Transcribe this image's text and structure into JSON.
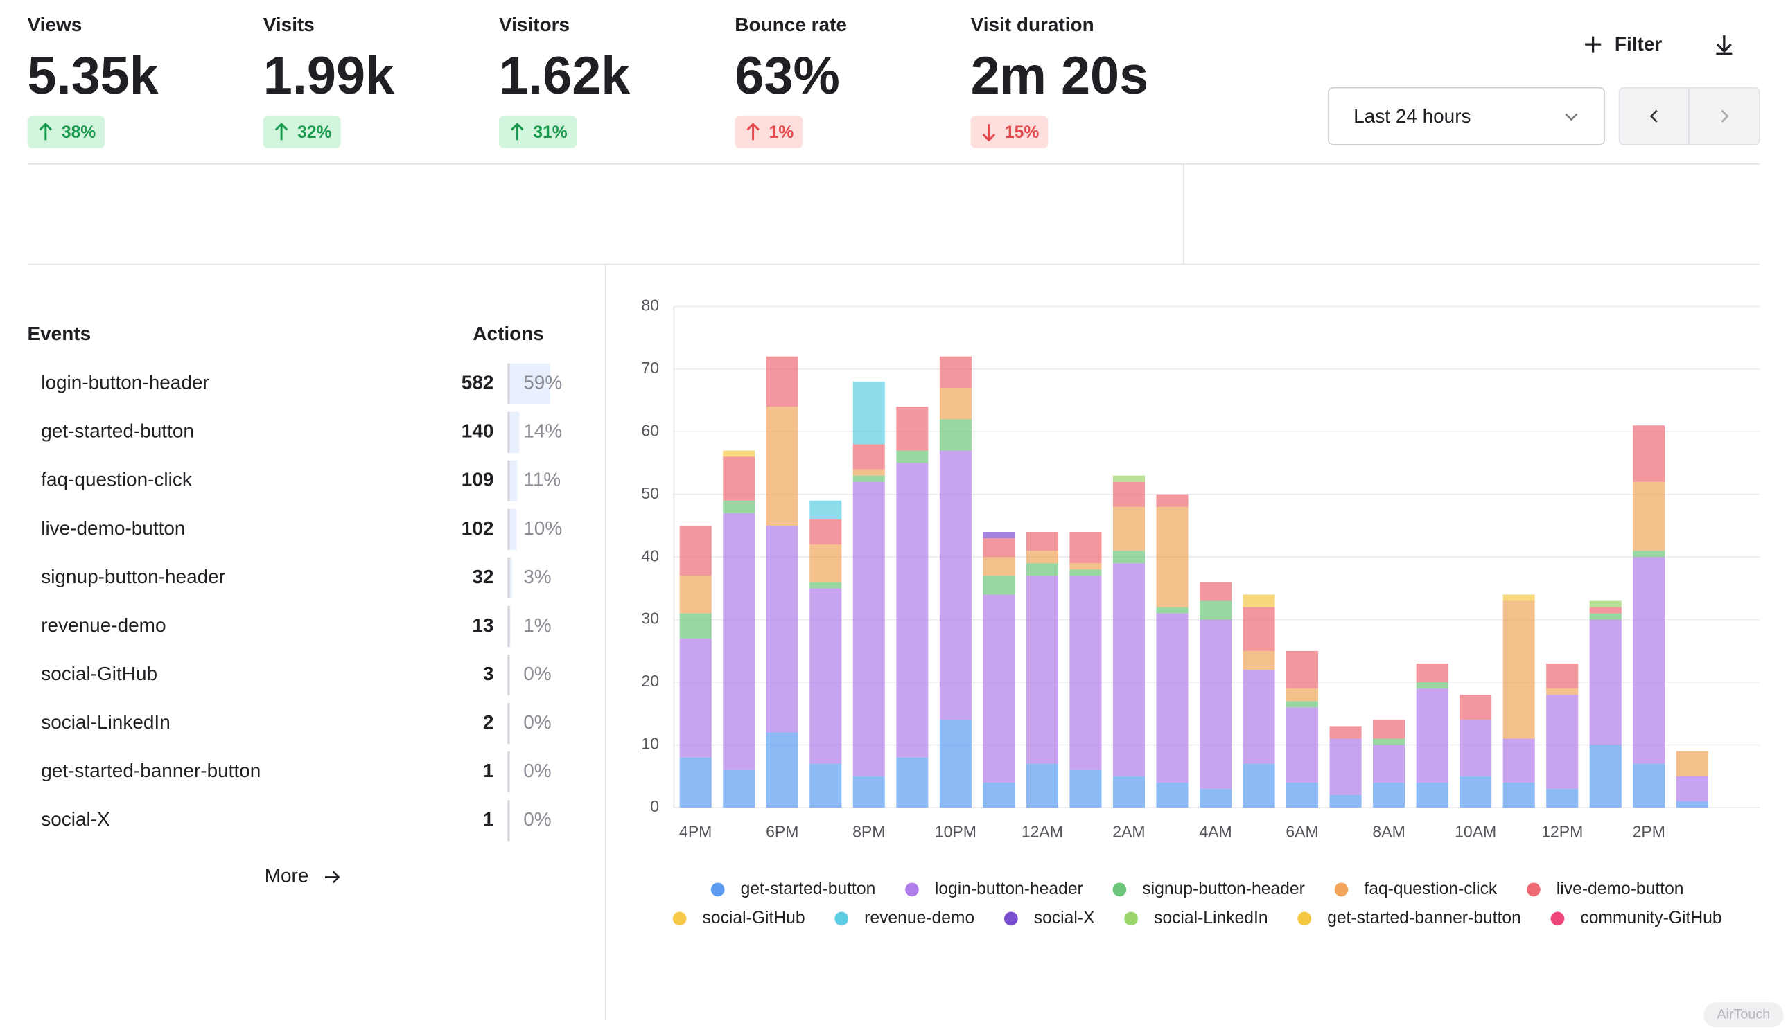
{
  "stats": [
    {
      "label": "Views",
      "value": "5.35k",
      "change": "38%",
      "direction": "up"
    },
    {
      "label": "Visits",
      "value": "1.99k",
      "change": "32%",
      "direction": "up"
    },
    {
      "label": "Visitors",
      "value": "1.62k",
      "change": "31%",
      "direction": "up"
    },
    {
      "label": "Bounce rate",
      "value": "63%",
      "change": "1%",
      "direction": "up-bad"
    },
    {
      "label": "Visit duration",
      "value": "2m 20s",
      "change": "15%",
      "direction": "down"
    }
  ],
  "controls": {
    "filter": "Filter",
    "period": "Last 24 hours"
  },
  "events": {
    "header": [
      "Events",
      "Actions"
    ],
    "rows": [
      {
        "name": "login-button-header",
        "count": 582,
        "share": {
          "value": 59,
          "label": "59%"
        }
      },
      {
        "name": "get-started-button",
        "count": 140,
        "share": {
          "value": 14,
          "label": "14%"
        }
      },
      {
        "name": "faq-question-click",
        "count": 109,
        "share": {
          "value": 11,
          "label": "11%"
        }
      },
      {
        "name": "live-demo-button",
        "count": 102,
        "share": {
          "value": 10,
          "label": "10%"
        }
      },
      {
        "name": "signup-button-header",
        "count": 32,
        "share": {
          "value": 3,
          "label": "3%"
        }
      },
      {
        "name": "revenue-demo",
        "count": 13,
        "share": {
          "value": 1,
          "label": "1%"
        }
      },
      {
        "name": "social-GitHub",
        "count": 3,
        "share": {
          "value": 0,
          "label": "0%"
        }
      },
      {
        "name": "social-LinkedIn",
        "count": 2,
        "share": {
          "value": 0,
          "label": "0%"
        }
      },
      {
        "name": "get-started-banner-button",
        "count": 1,
        "share": {
          "value": 0,
          "label": "0%"
        }
      },
      {
        "name": "social-X",
        "count": 1,
        "share": {
          "value": 0,
          "label": "0%"
        }
      }
    ],
    "more": "More"
  },
  "chart_data": {
    "type": "stacked-bar",
    "categories": [
      "4PM",
      null,
      "6PM",
      null,
      "8PM",
      null,
      "10PM",
      null,
      "12AM",
      null,
      "2AM",
      null,
      "4AM",
      null,
      "6AM",
      null,
      "8AM",
      null,
      "10AM",
      null,
      "12PM",
      null,
      "2PM",
      null
    ],
    "ylim": [
      0,
      80
    ],
    "yticks": [
      0,
      10,
      20,
      30,
      40,
      50,
      60,
      70,
      80
    ],
    "grid": true,
    "series": [
      {
        "name": "get-started-button",
        "color": "#5b9cf0",
        "values": [
          8,
          6,
          12,
          7,
          5,
          8,
          14,
          4,
          7,
          6,
          5,
          4,
          3,
          7,
          4,
          2,
          4,
          4,
          5,
          4,
          3,
          10,
          7,
          1
        ]
      },
      {
        "name": "login-button-header",
        "color": "#b07ee8",
        "values": [
          19,
          41,
          33,
          28,
          47,
          47,
          43,
          30,
          30,
          31,
          34,
          27,
          27,
          15,
          12,
          9,
          6,
          15,
          9,
          7,
          15,
          20,
          33,
          4
        ]
      },
      {
        "name": "signup-button-header",
        "color": "#6cc47a",
        "values": [
          4,
          2,
          0,
          1,
          1,
          2,
          5,
          3,
          2,
          1,
          2,
          1,
          3,
          0,
          1,
          0,
          1,
          1,
          0,
          0,
          0,
          1,
          1,
          0
        ]
      },
      {
        "name": "faq-question-click",
        "color": "#f0a55a",
        "values": [
          6,
          0,
          19,
          6,
          1,
          0,
          5,
          3,
          2,
          1,
          7,
          16,
          0,
          3,
          2,
          0,
          0,
          0,
          0,
          22,
          1,
          0,
          11,
          4
        ]
      },
      {
        "name": "live-demo-button",
        "color": "#ee6b75",
        "values": [
          8,
          7,
          8,
          4,
          4,
          7,
          5,
          3,
          3,
          5,
          4,
          2,
          3,
          7,
          6,
          2,
          3,
          3,
          4,
          0,
          4,
          1,
          9,
          0
        ]
      },
      {
        "name": "social-GitHub",
        "color": "#f7c94a",
        "values": [
          0,
          1,
          0,
          0,
          0,
          0,
          0,
          0,
          0,
          0,
          0,
          0,
          0,
          1,
          0,
          0,
          0,
          0,
          0,
          1,
          0,
          0,
          0,
          0
        ]
      },
      {
        "name": "revenue-demo",
        "color": "#5ccde3",
        "values": [
          0,
          0,
          0,
          3,
          10,
          0,
          0,
          0,
          0,
          0,
          0,
          0,
          0,
          0,
          0,
          0,
          0,
          0,
          0,
          0,
          0,
          0,
          0,
          0
        ]
      },
      {
        "name": "social-X",
        "color": "#7a4fcf",
        "values": [
          0,
          0,
          0,
          0,
          0,
          0,
          0,
          1,
          0,
          0,
          0,
          0,
          0,
          0,
          0,
          0,
          0,
          0,
          0,
          0,
          0,
          0,
          0,
          0
        ]
      },
      {
        "name": "social-LinkedIn",
        "color": "#9bd46a",
        "values": [
          0,
          0,
          0,
          0,
          0,
          0,
          0,
          0,
          0,
          0,
          1,
          0,
          0,
          0,
          0,
          0,
          0,
          0,
          0,
          0,
          0,
          1,
          0,
          0
        ]
      },
      {
        "name": "get-started-banner-button",
        "color": "#f5c842",
        "values": [
          0,
          0,
          0,
          0,
          0,
          0,
          0,
          0,
          0,
          0,
          0,
          0,
          0,
          1,
          0,
          0,
          0,
          0,
          0,
          0,
          0,
          0,
          0,
          0
        ]
      },
      {
        "name": "community-GitHub",
        "color": "#f0457a",
        "values": [
          0,
          0,
          0,
          0,
          0,
          0,
          0,
          0,
          0,
          0,
          0,
          0,
          0,
          0,
          0,
          0,
          0,
          0,
          0,
          0,
          0,
          0,
          0,
          0
        ]
      }
    ]
  },
  "watermark": "AirTouch"
}
